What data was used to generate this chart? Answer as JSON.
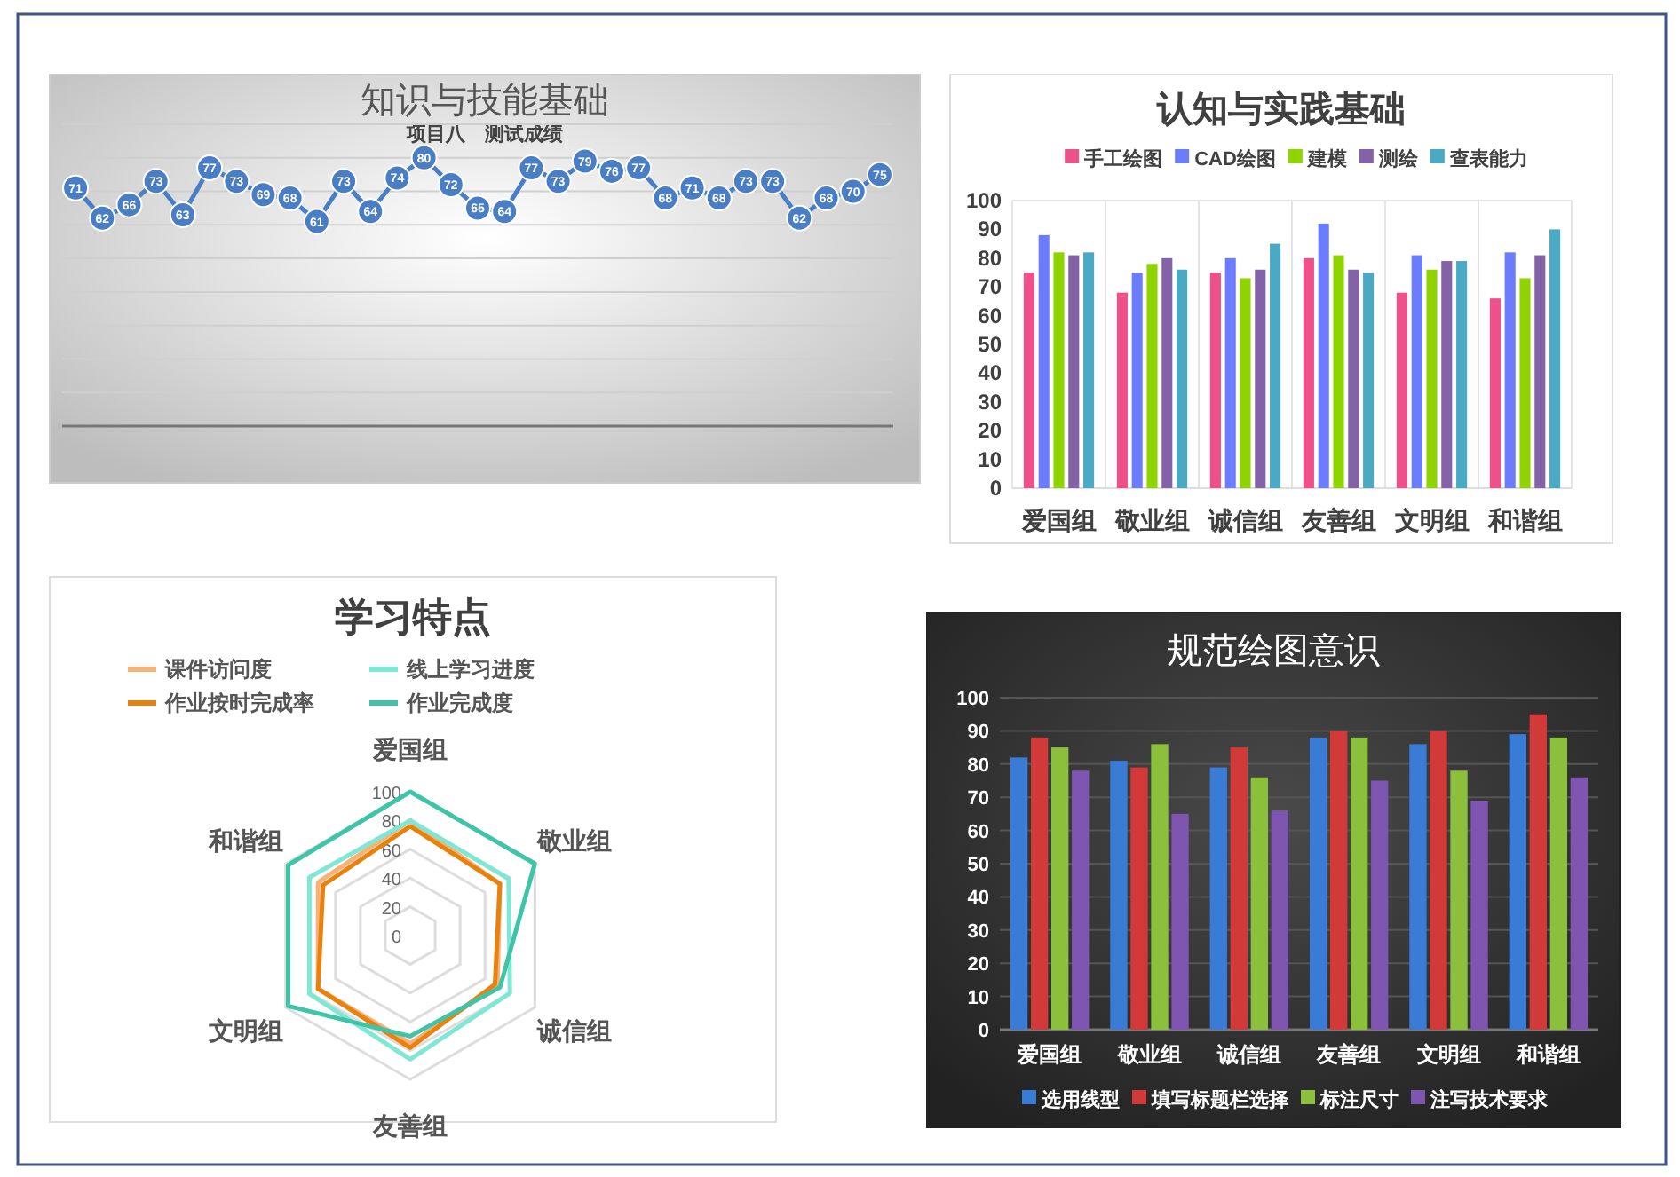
{
  "chart_data": [
    {
      "type": "line",
      "title": "知识与技能基础",
      "subtitle": "项目八　测试成绩",
      "categories": [
        null,
        null,
        null,
        null,
        null,
        null,
        null,
        null,
        null,
        null,
        null,
        null,
        null,
        null,
        null,
        null,
        null,
        null,
        null,
        null,
        null,
        null,
        null,
        null,
        null,
        null,
        null,
        null,
        null,
        null,
        null
      ],
      "series": [
        {
          "color": "#4a7ec4",
          "values": [
            71,
            62,
            66,
            73,
            63,
            77,
            73,
            69,
            68,
            61,
            73,
            64,
            74,
            80,
            72,
            65,
            64,
            77,
            73,
            79,
            76,
            77,
            68,
            71,
            68,
            73,
            73,
            62,
            68,
            70,
            75
          ]
        }
      ],
      "ylim": [
        0,
        90
      ],
      "yticks": [
        {
          "value": 0,
          "label": null
        },
        {
          "value": 10,
          "label": null
        },
        {
          "value": 20,
          "label": null
        },
        {
          "value": 30,
          "label": null
        },
        {
          "value": 40,
          "label": null
        },
        {
          "value": 50,
          "label": null
        },
        {
          "value": 60,
          "label": null
        },
        {
          "value": 70,
          "label": null
        },
        {
          "value": 80,
          "label": null
        },
        {
          "value": 90,
          "label": null
        }
      ],
      "grid": "y",
      "marker": "circle",
      "data_labels": true
    },
    {
      "type": "bar",
      "title": "认知与实践基础",
      "categories": [
        "爱国组",
        "敬业组",
        "诚信组",
        "友善组",
        "文明组",
        "和谐组"
      ],
      "series": [
        {
          "name": "手工绘图",
          "color": "#f0508a",
          "values": [
            75,
            68,
            75,
            80,
            68,
            66
          ]
        },
        {
          "name": "CAD绘图",
          "color": "#6b7cff",
          "values": [
            88,
            75,
            80,
            92,
            81,
            82
          ]
        },
        {
          "name": "建模",
          "color": "#8fd400",
          "values": [
            82,
            78,
            73,
            81,
            76,
            73
          ]
        },
        {
          "name": "测绘",
          "color": "#8462a8",
          "values": [
            81,
            80,
            76,
            76,
            79,
            81
          ]
        },
        {
          "name": "查表能力",
          "color": "#4aaac4",
          "values": [
            82,
            76,
            85,
            75,
            79,
            90
          ]
        }
      ],
      "ylim": [
        0,
        100
      ],
      "yticks": [
        0,
        10,
        20,
        30,
        40,
        50,
        60,
        70,
        80,
        90,
        100
      ],
      "grid": "x",
      "legend": "top"
    },
    {
      "type": "radar",
      "title": "学习特点",
      "categories": [
        "爱国组",
        "敬业组",
        "诚信组",
        "友善组",
        "文明组",
        "和谐组"
      ],
      "series": [
        {
          "name": "课件访问度",
          "color": "#f7b27a",
          "values": [
            80,
            72,
            70,
            75,
            74,
            74
          ]
        },
        {
          "name": "线上学习进度",
          "color": "#7ee8d4",
          "values": [
            80,
            79,
            80,
            86,
            81,
            81
          ]
        },
        {
          "name": "作业按时完成率",
          "color": "#e8820c",
          "values": [
            76,
            72,
            68,
            78,
            74,
            70
          ]
        },
        {
          "name": "作业完成度",
          "color": "#40c4a8",
          "values": [
            100,
            100,
            72,
            70,
            98,
            98
          ]
        }
      ],
      "ylim": [
        0,
        100
      ],
      "yticks": [
        0,
        20,
        40,
        60,
        80,
        100
      ],
      "grid": true,
      "legend": "top"
    },
    {
      "type": "bar",
      "title": "规范绘图意识",
      "categories": [
        "爱国组",
        "敬业组",
        "诚信组",
        "友善组",
        "文明组",
        "和谐组"
      ],
      "series": [
        {
          "name": "选用线型",
          "color": "#3a7bd5",
          "values": [
            82,
            81,
            79,
            88,
            86,
            89
          ]
        },
        {
          "name": "填写标题栏选择",
          "color": "#d13a38",
          "values": [
            88,
            79,
            85,
            90,
            90,
            95
          ]
        },
        {
          "name": "标注尺寸",
          "color": "#8cc03c",
          "values": [
            85,
            86,
            76,
            88,
            78,
            88
          ]
        },
        {
          "name": "注写技术要求",
          "color": "#7e55b0",
          "values": [
            78,
            65,
            66,
            75,
            69,
            76
          ]
        }
      ],
      "ylim": [
        0,
        100
      ],
      "yticks": [
        0,
        10,
        20,
        30,
        40,
        50,
        60,
        70,
        80,
        90,
        100
      ],
      "grid": "y",
      "legend": "bottom"
    }
  ]
}
